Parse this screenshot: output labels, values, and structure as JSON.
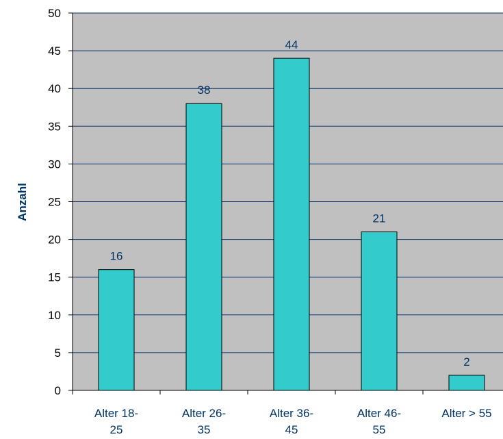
{
  "chart_data": {
    "type": "bar",
    "title": "",
    "xlabel": "",
    "ylabel": "Anzahl",
    "categories": [
      [
        "Alter 18-",
        "25"
      ],
      [
        "Alter 26-",
        "35"
      ],
      [
        "Alter 36-",
        "45"
      ],
      [
        "Alter 46-",
        "55"
      ],
      [
        "Alter > 55"
      ]
    ],
    "values": [
      16,
      38,
      44,
      21,
      2
    ],
    "ylim": [
      0,
      50
    ],
    "yticks": [
      0,
      5,
      10,
      15,
      20,
      25,
      30,
      35,
      40,
      45,
      50
    ],
    "grid": true,
    "legend": "none",
    "colors": {
      "plot_background": "#C0C0C0",
      "bar_fill": "#33CCCC",
      "bar_stroke": "#000000",
      "gridline": "#003366",
      "label_text": "#003366"
    }
  }
}
